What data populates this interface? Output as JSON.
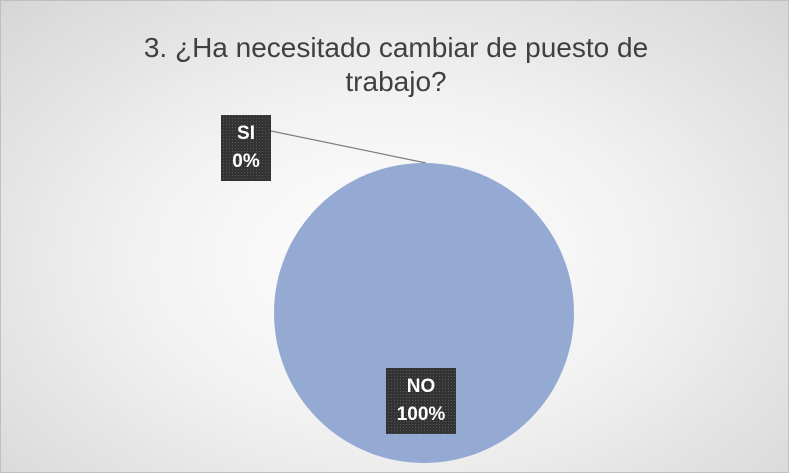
{
  "chart_data": {
    "type": "pie",
    "title": "3. ¿Ha necesitado cambiar de puesto de trabajo?",
    "categories": [
      "SI",
      "NO"
    ],
    "values": [
      0,
      100
    ],
    "value_labels": [
      "0%",
      "100%"
    ],
    "colors": [
      "#ed7d31",
      "#95aad3"
    ]
  }
}
